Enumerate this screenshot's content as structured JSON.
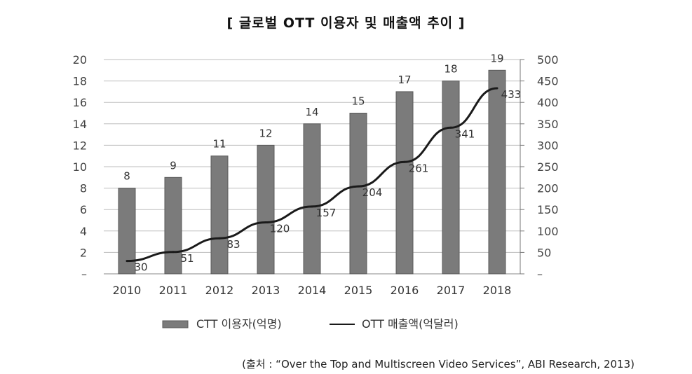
{
  "title": "[ 글로벌 OTT 이용자 및 매출액 추이 ]",
  "source": "(출처 : “Over the Top and Multiscreen Video Services”, ABI Research, 2013)",
  "chart_data": {
    "type": "bar",
    "categories": [
      "2010",
      "2011",
      "2012",
      "2013",
      "2014",
      "2015",
      "2016",
      "2017",
      "2018"
    ],
    "series": [
      {
        "name": "CTT 이용자(억명)",
        "type": "bar",
        "axis": "left",
        "values": [
          8,
          9,
          11,
          12,
          14,
          15,
          17,
          18,
          19
        ]
      },
      {
        "name": "OTT 매출액(억달러)",
        "type": "line",
        "axis": "right",
        "values": [
          30,
          51,
          83,
          120,
          157,
          204,
          261,
          341,
          433
        ]
      }
    ],
    "y_left": {
      "ylim": [
        0,
        20
      ],
      "ticks": [
        "–",
        "2",
        "4",
        "6",
        "8",
        "10",
        "12",
        "14",
        "16",
        "18",
        "20"
      ]
    },
    "y_right": {
      "ylim": [
        0,
        500
      ],
      "ticks": [
        "–",
        "50",
        "100",
        "150",
        "200",
        "250",
        "300",
        "350",
        "400",
        "450",
        "500"
      ]
    },
    "grid": true,
    "legend_position": "bottom",
    "colors": {
      "bar": "#7b7b7b",
      "bar_edge": "#5a5a5a",
      "line": "#1a1a1a",
      "grid": "#bdbdbd"
    }
  }
}
